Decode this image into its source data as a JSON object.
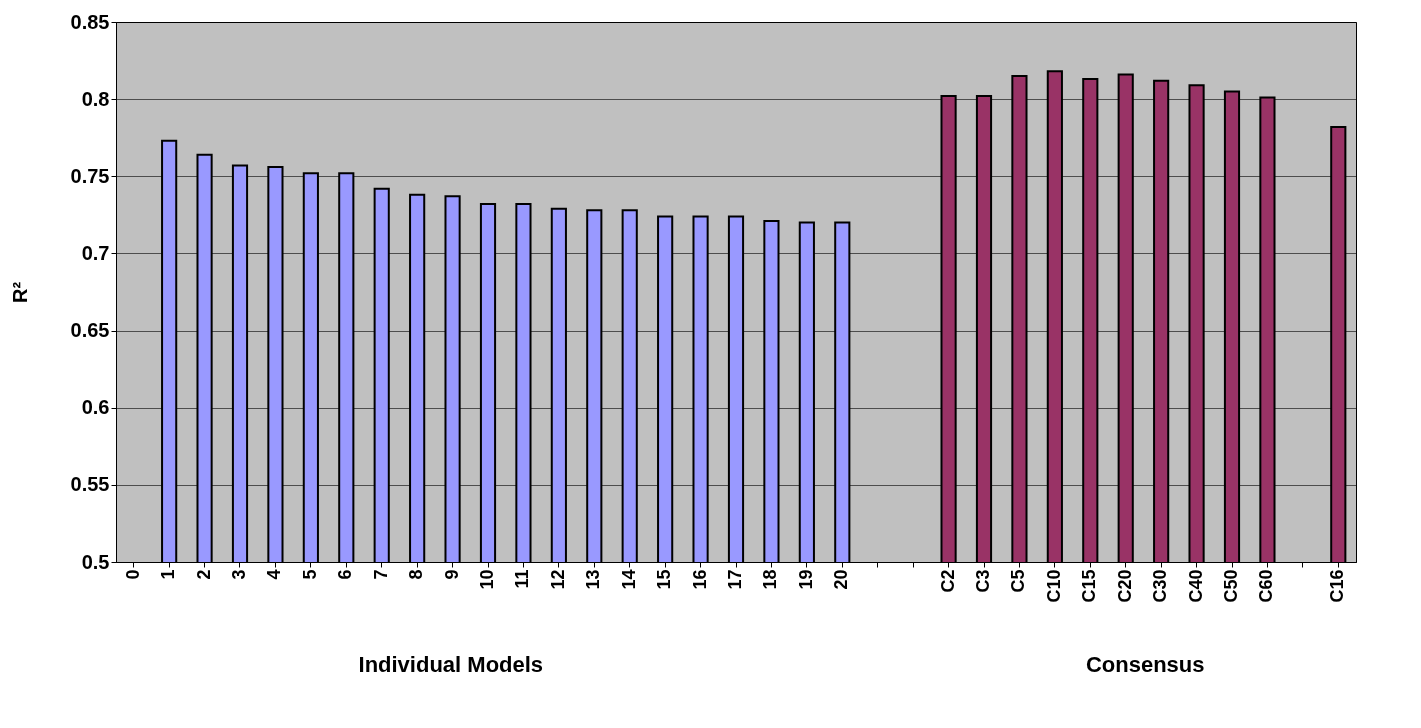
{
  "chart_data": {
    "type": "bar",
    "ylabel": "R²",
    "categories": [
      "0",
      "1",
      "2",
      "3",
      "4",
      "5",
      "6",
      "7",
      "8",
      "9",
      "10",
      "11",
      "12",
      "13",
      "14",
      "15",
      "16",
      "17",
      "18",
      "19",
      "20",
      null,
      null,
      "C2",
      "C3",
      "C5",
      "C10",
      "C15",
      "C20",
      "C30",
      "C40",
      "C50",
      "C60",
      null,
      "C16"
    ],
    "series": [
      {
        "color": "#9999ff",
        "values": [
          null,
          0.773,
          0.764,
          0.757,
          0.756,
          0.752,
          0.752,
          0.742,
          0.738,
          0.737,
          0.732,
          0.732,
          0.729,
          0.728,
          0.728,
          0.724,
          0.724,
          0.724,
          0.721,
          0.72,
          0.72,
          null,
          null,
          null,
          null,
          null,
          null,
          null,
          null,
          null,
          null,
          null,
          null,
          null,
          null
        ]
      },
      {
        "color": "#993366",
        "values": [
          null,
          null,
          null,
          null,
          null,
          null,
          null,
          null,
          null,
          null,
          null,
          null,
          null,
          null,
          null,
          null,
          null,
          null,
          null,
          null,
          null,
          null,
          null,
          0.802,
          0.802,
          0.815,
          0.818,
          0.813,
          0.816,
          0.812,
          0.809,
          0.805,
          0.801,
          null,
          0.782
        ]
      }
    ],
    "ylim": [
      0.5,
      0.85
    ],
    "yticks": [
      0.5,
      0.55,
      0.6,
      0.65,
      0.7,
      0.75,
      0.8,
      0.85
    ],
    "grid": "y",
    "legend": false,
    "annotations": [
      "Individual Models",
      "Consensus"
    ]
  }
}
